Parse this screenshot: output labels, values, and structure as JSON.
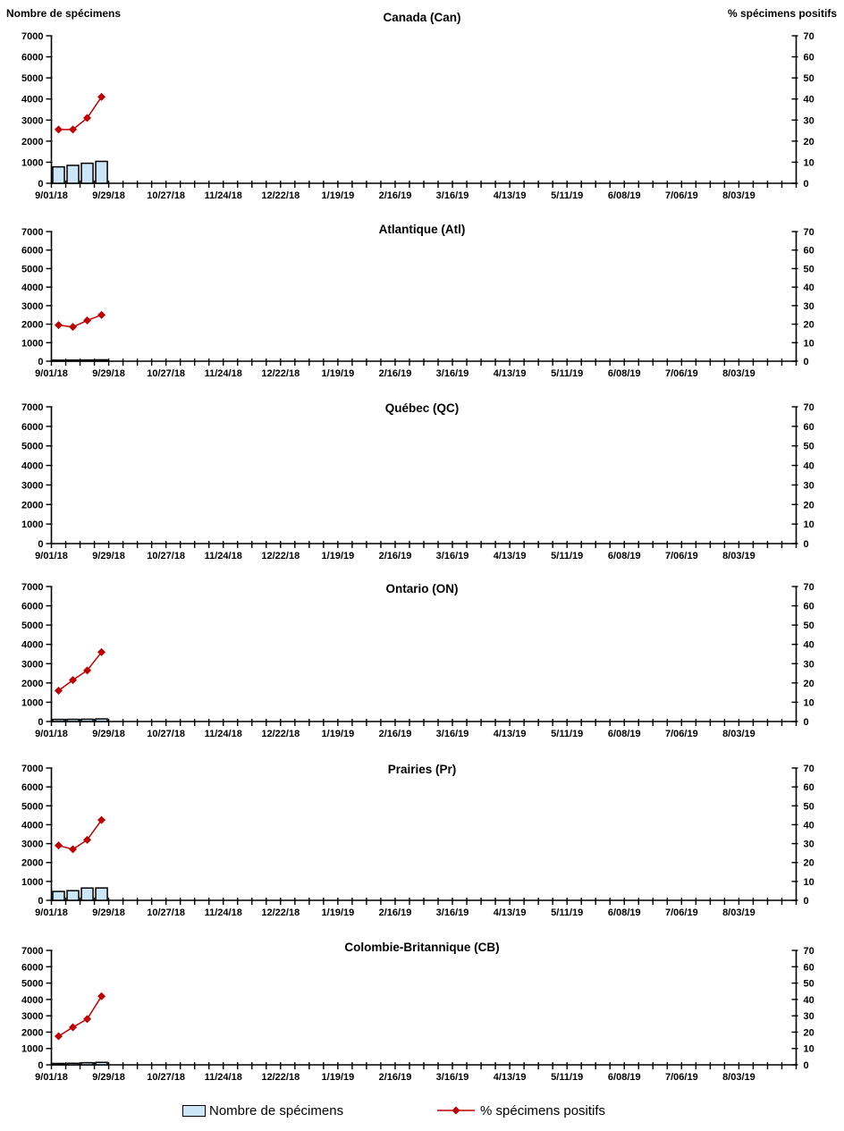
{
  "page": {
    "left_axis_title": "Nombre de spécimens",
    "right_axis_title": "% spécimens positifs"
  },
  "legend": {
    "bars": "Nombre de spécimens",
    "line": "% spécimens positifs"
  },
  "colors": {
    "bar_fill": "#CDE6F7",
    "bar_border": "#000000",
    "line": "#C00000",
    "axis": "#000000"
  },
  "axes": {
    "left_ticks": [
      0,
      1000,
      2000,
      3000,
      4000,
      5000,
      6000,
      7000
    ],
    "right_ticks": [
      0,
      10,
      20,
      30,
      40,
      50,
      60,
      70
    ],
    "x_labels": [
      "9/01/18",
      "9/29/18",
      "10/27/18",
      "11/24/18",
      "12/22/18",
      "1/19/19",
      "2/16/19",
      "3/16/19",
      "4/13/19",
      "5/11/19",
      "6/08/19",
      "7/06/19",
      "8/03/19"
    ],
    "weeks_total": 52,
    "label_every": 4,
    "grid": false,
    "legend_position": "bottom"
  },
  "chart_data": [
    {
      "id": "canada",
      "title": "Canada (Can)",
      "type": "bar",
      "ylim_left": [
        0,
        7000
      ],
      "ylim_right": [
        0,
        70
      ],
      "series": [
        {
          "name": "Nombre de spécimens",
          "type": "bar",
          "axis": "left",
          "week_slots": [
            0,
            1,
            2,
            3
          ],
          "values": [
            780,
            850,
            950,
            1040
          ]
        },
        {
          "name": "% spécimens positifs",
          "type": "line",
          "axis": "right",
          "week_slots": [
            0,
            1,
            2,
            3
          ],
          "values": [
            25.5,
            25.5,
            31,
            41
          ]
        }
      ]
    },
    {
      "id": "atlantique",
      "title": "Atlantique (Atl)",
      "type": "bar",
      "ylim_left": [
        0,
        7000
      ],
      "ylim_right": [
        0,
        70
      ],
      "series": [
        {
          "name": "Nombre de spécimens",
          "type": "bar",
          "axis": "left",
          "week_slots": [
            0,
            1,
            2,
            3
          ],
          "values": [
            55,
            60,
            65,
            75
          ]
        },
        {
          "name": "% spécimens positifs",
          "type": "line",
          "axis": "right",
          "week_slots": [
            0,
            1,
            2,
            3
          ],
          "values": [
            19.5,
            18.5,
            22,
            25
          ]
        }
      ]
    },
    {
      "id": "quebec",
      "title": "Québec (QC)",
      "type": "bar",
      "ylim_left": [
        0,
        7000
      ],
      "ylim_right": [
        0,
        70
      ],
      "series": [
        {
          "name": "Nombre de spécimens",
          "type": "bar",
          "axis": "left",
          "week_slots": [],
          "values": []
        },
        {
          "name": "% spécimens positifs",
          "type": "line",
          "axis": "right",
          "week_slots": [],
          "values": []
        }
      ]
    },
    {
      "id": "ontario",
      "title": "Ontario (ON)",
      "type": "bar",
      "ylim_left": [
        0,
        7000
      ],
      "ylim_right": [
        0,
        70
      ],
      "series": [
        {
          "name": "Nombre de spécimens",
          "type": "bar",
          "axis": "left",
          "week_slots": [
            0,
            1,
            2,
            3
          ],
          "values": [
            110,
            115,
            120,
            135
          ]
        },
        {
          "name": "% spécimens positifs",
          "type": "line",
          "axis": "right",
          "week_slots": [
            0,
            1,
            2,
            3
          ],
          "values": [
            16,
            21.5,
            26.5,
            36
          ]
        }
      ]
    },
    {
      "id": "prairies",
      "title": "Prairies (Pr)",
      "type": "bar",
      "ylim_left": [
        0,
        7000
      ],
      "ylim_right": [
        0,
        70
      ],
      "series": [
        {
          "name": "Nombre de spécimens",
          "type": "bar",
          "axis": "left",
          "week_slots": [
            0,
            1,
            2,
            3
          ],
          "values": [
            470,
            510,
            650,
            655
          ]
        },
        {
          "name": "% spécimens positifs",
          "type": "line",
          "axis": "right",
          "week_slots": [
            0,
            1,
            2,
            3
          ],
          "values": [
            29,
            27,
            32,
            42.5
          ]
        }
      ]
    },
    {
      "id": "colombie-britannique",
      "title": "Colombie-Britannique (CB)",
      "type": "bar",
      "ylim_left": [
        0,
        7000
      ],
      "ylim_right": [
        0,
        70
      ],
      "series": [
        {
          "name": "Nombre de spécimens",
          "type": "bar",
          "axis": "left",
          "week_slots": [
            0,
            1,
            2,
            3
          ],
          "values": [
            85,
            95,
            130,
            150
          ]
        },
        {
          "name": "% spécimens positifs",
          "type": "line",
          "axis": "right",
          "week_slots": [
            0,
            1,
            2,
            3
          ],
          "values": [
            17.5,
            23,
            28,
            42
          ]
        }
      ]
    }
  ]
}
